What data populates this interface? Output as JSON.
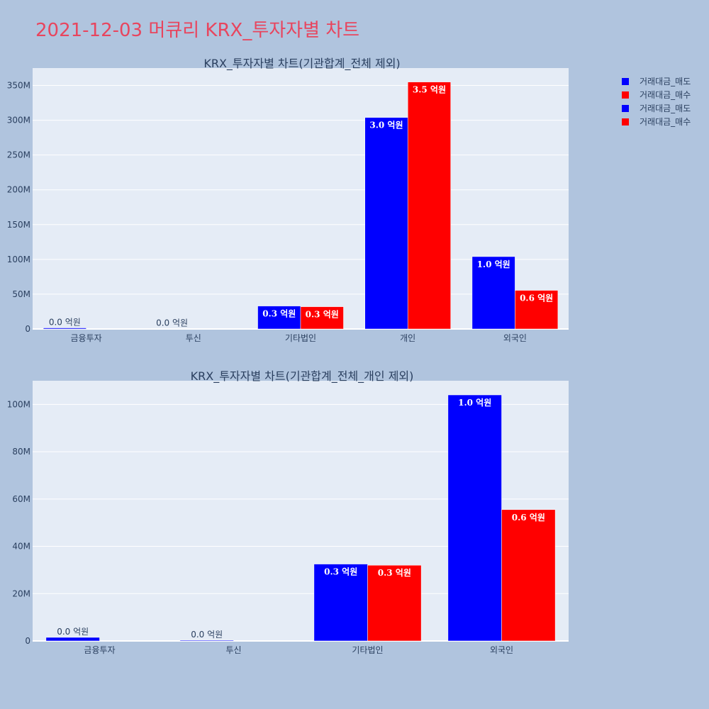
{
  "page": {
    "title": "2021-12-03 머큐리 KRX_투자자별 차트"
  },
  "legend": [
    {
      "name": "거래대금_매도",
      "color": "#0000ff"
    },
    {
      "name": "거래대금_매수",
      "color": "#ff0000"
    },
    {
      "name": "거래대금_매도",
      "color": "#0000ff"
    },
    {
      "name": "거래대금_매수",
      "color": "#ff0000"
    }
  ],
  "chart_data": [
    {
      "type": "bar",
      "title": "KRX_투자자별 차트(기관합계_전체 제외)",
      "categories": [
        "금융투자",
        "투신",
        "기타법인",
        "개인",
        "외국인"
      ],
      "ylim": [
        0,
        375000000
      ],
      "yticks": [
        0,
        50000000,
        100000000,
        150000000,
        200000000,
        250000000,
        300000000,
        350000000
      ],
      "ytick_labels": [
        "0",
        "50M",
        "100M",
        "150M",
        "200M",
        "250M",
        "300M",
        "350M"
      ],
      "grid": true,
      "series": [
        {
          "name": "거래대금_매도",
          "color": "#0000ff",
          "values": [
            1500000,
            300000,
            33000000,
            304000000,
            104000000
          ],
          "labels": [
            "0.0 억원",
            "0.0 억원",
            "0.3 억원",
            "3.0 억원",
            "1.0 억원"
          ]
        },
        {
          "name": "거래대금_매수",
          "color": "#ff0000",
          "values": [
            0,
            0,
            32000000,
            355000000,
            55500000
          ],
          "labels": [
            "",
            "",
            "0.3 억원",
            "3.5 억원",
            "0.6 억원"
          ]
        }
      ]
    },
    {
      "type": "bar",
      "title": "KRX_투자자별 차트(기관합계_전체_개인 제외)",
      "categories": [
        "금융투자",
        "투신",
        "기타법인",
        "외국인"
      ],
      "ylim": [
        0,
        110000000
      ],
      "yticks": [
        0,
        20000000,
        40000000,
        60000000,
        80000000,
        100000000
      ],
      "ytick_labels": [
        "0",
        "20M",
        "40M",
        "60M",
        "80M",
        "100M"
      ],
      "grid": true,
      "series": [
        {
          "name": "거래대금_매도",
          "color": "#0000ff",
          "values": [
            1500000,
            300000,
            32500000,
            104000000
          ],
          "labels": [
            "0.0 억원",
            "0.0 억원",
            "0.3 억원",
            "1.0 억원"
          ]
        },
        {
          "name": "거래대금_매수",
          "color": "#ff0000",
          "values": [
            0,
            0,
            32000000,
            55500000
          ],
          "labels": [
            "",
            "",
            "0.3 억원",
            "0.6 억원"
          ]
        }
      ]
    }
  ]
}
